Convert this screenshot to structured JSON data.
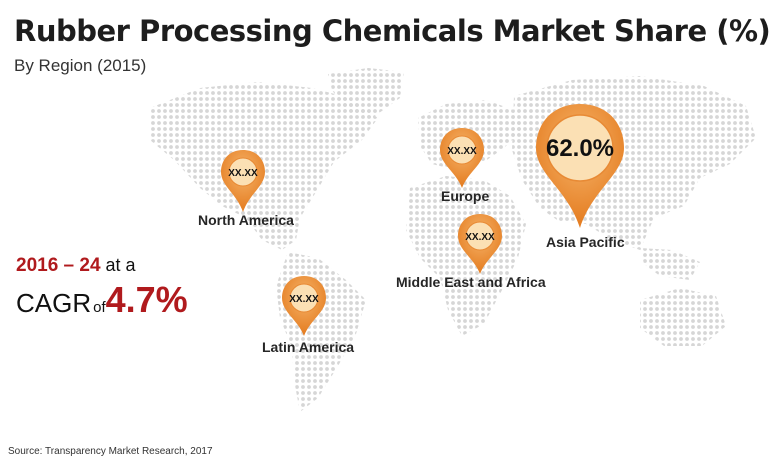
{
  "title": "Rubber Processing Chemicals Market Share (%)",
  "subtitle": "By Region (2015)",
  "regions": [
    {
      "name": "North America",
      "value": "XX.XX"
    },
    {
      "name": "Europe",
      "value": "XX.XX"
    },
    {
      "name": "Asia Pacific",
      "value": "62.0%"
    },
    {
      "name": "Middle East and Africa",
      "value": "XX.XX"
    },
    {
      "name": "Latin America",
      "value": "XX.XX"
    }
  ],
  "cagr": {
    "years": "2016 – 24",
    "at_a": "at a",
    "label": "CAGR",
    "of": "of",
    "value": "4.7%"
  },
  "source": "Source: Transparency Market Research, 2017",
  "colors": {
    "pin_orange": "#ee8c33",
    "pin_light": "#fbe0b4",
    "accent_red": "#b01a1d",
    "map_dots": "#d9d9d9"
  }
}
